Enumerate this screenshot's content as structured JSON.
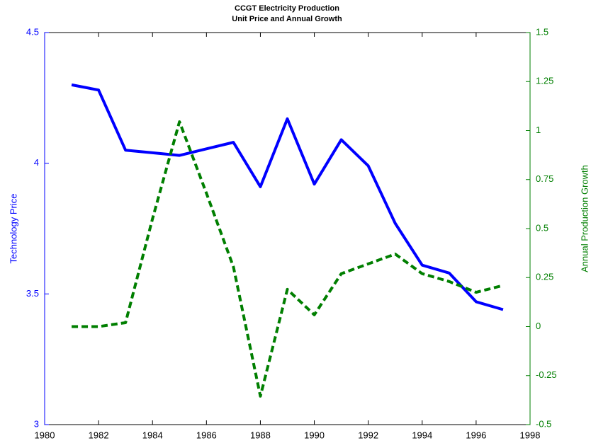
{
  "chart_data": {
    "type": "line",
    "title": "CCGT Electricity Production",
    "subtitle": "Unit Price and Annual Growth",
    "ylabel": "Technology Price",
    "y2label": "Annual Production Growth",
    "x": [
      1981,
      1982,
      1983,
      1984,
      1985,
      1986,
      1987,
      1988,
      1989,
      1990,
      1991,
      1992,
      1993,
      1994,
      1995,
      1996,
      1997
    ],
    "series": [
      {
        "color": "#0000ff",
        "dashed": false,
        "axis": "y",
        "values": [
          4.3,
          4.28,
          4.05,
          4.04,
          4.03,
          4.055,
          4.08,
          3.91,
          4.17,
          3.92,
          4.09,
          3.99,
          3.77,
          3.61,
          3.58,
          3.47,
          3.44
        ]
      },
      {
        "color": "#007f00",
        "dashed": true,
        "axis": "y2",
        "values": [
          0,
          0,
          0.02,
          0.55,
          1.045,
          0.68,
          0.305,
          -0.355,
          0.19,
          0.06,
          0.27,
          0.32,
          0.37,
          0.27,
          0.23,
          0.175,
          0.21
        ]
      }
    ],
    "xlim": [
      1980,
      1998
    ],
    "xticks": [
      1980,
      1982,
      1984,
      1986,
      1988,
      1990,
      1992,
      1994,
      1996,
      1998
    ],
    "ylim": [
      3,
      4.5
    ],
    "yticks": [
      3,
      3.5,
      4,
      4.5
    ],
    "ycolor": "#0000ff",
    "y2lim": [
      -0.5,
      1.5
    ],
    "y2ticks": [
      -0.5,
      -0.25,
      0,
      0.25,
      0.5,
      0.75,
      1,
      1.25,
      1.5
    ],
    "y2color": "#007f00",
    "grid": false
  }
}
